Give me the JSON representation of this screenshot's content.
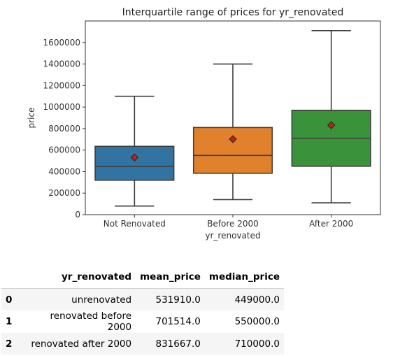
{
  "chart_data": {
    "type": "box",
    "title": "Interquartile range of prices for yr_renovated",
    "xlabel": "yr_renovated",
    "ylabel": "price",
    "ylim": [
      0,
      1800000
    ],
    "yticks": [
      0,
      200000,
      400000,
      600000,
      800000,
      1000000,
      1200000,
      1400000,
      1600000
    ],
    "ytick_labels": [
      "0",
      "200000",
      "400000",
      "600000",
      "800000",
      "1000000",
      "1200000",
      "1400000",
      "1600000"
    ],
    "grid": false,
    "categories": [
      "Not Renovated",
      "Before 2000",
      "After 2000"
    ],
    "boxes": [
      {
        "whisker_low": 80000,
        "q1": 320000,
        "median": 449000,
        "q3": 635000,
        "whisker_high": 1100000,
        "mean": 531910,
        "color": "#3274a1"
      },
      {
        "whisker_low": 140000,
        "q1": 385000,
        "median": 550000,
        "q3": 810000,
        "whisker_high": 1400000,
        "mean": 701514,
        "color": "#e1812c"
      },
      {
        "whisker_low": 110000,
        "q1": 450000,
        "median": 710000,
        "q3": 970000,
        "whisker_high": 1710000,
        "mean": 831667,
        "color": "#3a923a"
      }
    ],
    "mean_marker_color": "#c0221b"
  },
  "table": {
    "headers": [
      "",
      "yr_renovated",
      "mean_price",
      "median_price"
    ],
    "rows": [
      {
        "index": "0",
        "yr_renovated": "unrenovated",
        "mean_price": "531910.0",
        "median_price": "449000.0"
      },
      {
        "index": "1",
        "yr_renovated": "renovated before 2000",
        "mean_price": "701514.0",
        "median_price": "550000.0"
      },
      {
        "index": "2",
        "yr_renovated": "renovated after 2000",
        "mean_price": "831667.0",
        "median_price": "710000.0"
      }
    ]
  }
}
